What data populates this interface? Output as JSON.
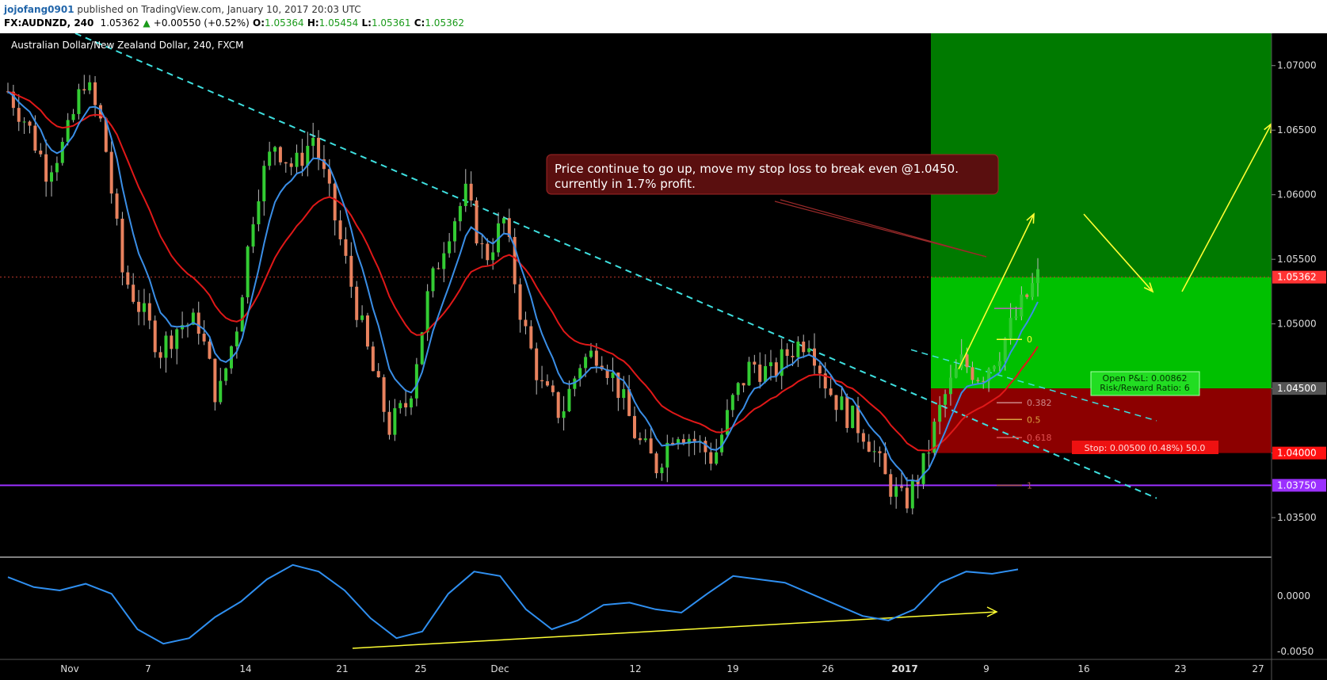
{
  "header": {
    "author": "jojofang0901",
    "published": "published on TradingView.com, January 10, 2017 20:03 UTC",
    "symbol": "FX:AUDNZD, 240",
    "last": "1.05362",
    "arrow": "▲",
    "change": "+0.00550 (+0.52%)",
    "o_label": "O:",
    "o_value": "1.05364",
    "h_label": "H:",
    "h_value": "1.05454",
    "l_label": "L:",
    "l_value": "1.05361",
    "c_label": "C:",
    "c_value": "1.05362"
  },
  "chart_data": {
    "type": "candlestick",
    "title": "Australian Dollar/New Zealand Dollar, 240, FXCM",
    "y_ticks": [
      "1.07000",
      "1.06500",
      "1.06000",
      "1.05500",
      "1.05000",
      "1.04500",
      "1.04000",
      "1.03500"
    ],
    "y_range": [
      1.032,
      1.0725
    ],
    "x_ticks": [
      "Nov",
      "7",
      "14",
      "21",
      "25",
      "Dec",
      "12",
      "19",
      "26",
      "2017",
      "9",
      "16",
      "23",
      "27"
    ],
    "price_tag": "1.05362",
    "support_tag": "1.03750",
    "entry_tag": "1.04500",
    "stop_tag": "1.04000",
    "support_level": 1.0375,
    "entry_level": 1.045,
    "stop_level": 1.04,
    "current_price": 1.05362,
    "target_level": 1.0725,
    "annotation": "Price continue to go up, move my stop loss to break even @1.0450. currently in 1.7% profit.",
    "annotation_lines": [
      "Price continue to go up, move my stop loss to break even @1.0450.",
      "currently in 1.7% profit."
    ],
    "position_box": [
      "Open P&L: 0.00862",
      "Risk/Reward Ratio: 6"
    ],
    "stop_box": "Stop: 0.00500 (0.48%) 50.0",
    "fib_levels": [
      {
        "label": "0",
        "value": 1.0488
      },
      {
        "label": "0.382",
        "value": 1.0439
      },
      {
        "label": "0.5",
        "value": 1.0426
      },
      {
        "label": "0.618",
        "value": 1.0412
      },
      {
        "label": "1",
        "value": 1.0375
      }
    ],
    "price_anchors": [
      {
        "x": 0,
        "y": 1.068
      },
      {
        "x": 1,
        "y": 1.0655
      },
      {
        "x": 2,
        "y": 1.062
      },
      {
        "x": 3,
        "y": 1.064
      },
      {
        "x": 4,
        "y": 1.069
      },
      {
        "x": 5,
        "y": 1.065
      },
      {
        "x": 6,
        "y": 1.054
      },
      {
        "x": 7,
        "y": 1.051
      },
      {
        "x": 8,
        "y": 1.048
      },
      {
        "x": 9,
        "y": 1.05
      },
      {
        "x": 10,
        "y": 1.05
      },
      {
        "x": 11,
        "y": 1.044
      },
      {
        "x": 12,
        "y": 1.05
      },
      {
        "x": 13,
        "y": 1.06
      },
      {
        "x": 14,
        "y": 1.064
      },
      {
        "x": 15,
        "y": 1.062
      },
      {
        "x": 16,
        "y": 1.0645
      },
      {
        "x": 17,
        "y": 1.059
      },
      {
        "x": 18,
        "y": 1.053
      },
      {
        "x": 19,
        "y": 1.047
      },
      {
        "x": 20,
        "y": 1.042
      },
      {
        "x": 21,
        "y": 1.044
      },
      {
        "x": 22,
        "y": 1.052
      },
      {
        "x": 23,
        "y": 1.057
      },
      {
        "x": 24,
        "y": 1.06
      },
      {
        "x": 25,
        "y": 1.055
      },
      {
        "x": 26,
        "y": 1.058
      },
      {
        "x": 27,
        "y": 1.05
      },
      {
        "x": 28,
        "y": 1.045
      },
      {
        "x": 29,
        "y": 1.043
      },
      {
        "x": 30,
        "y": 1.047
      },
      {
        "x": 31,
        "y": 1.048
      },
      {
        "x": 32,
        "y": 1.045
      },
      {
        "x": 33,
        "y": 1.041
      },
      {
        "x": 34,
        "y": 1.039
      },
      {
        "x": 35,
        "y": 1.042
      },
      {
        "x": 36,
        "y": 1.041
      },
      {
        "x": 37,
        "y": 1.0395
      },
      {
        "x": 38,
        "y": 1.044
      },
      {
        "x": 39,
        "y": 1.047
      },
      {
        "x": 40,
        "y": 1.046
      },
      {
        "x": 41,
        "y": 1.048
      },
      {
        "x": 42,
        "y": 1.049
      },
      {
        "x": 43,
        "y": 1.045
      },
      {
        "x": 44,
        "y": 1.043
      },
      {
        "x": 45,
        "y": 1.0415
      },
      {
        "x": 46,
        "y": 1.038
      },
      {
        "x": 47,
        "y": 1.036
      },
      {
        "x": 48,
        "y": 1.039
      },
      {
        "x": 49,
        "y": 1.044
      },
      {
        "x": 50,
        "y": 1.047
      },
      {
        "x": 51,
        "y": 1.046
      },
      {
        "x": 52,
        "y": 1.048
      },
      {
        "x": 53,
        "y": 1.051
      },
      {
        "x": 54,
        "y": 1.0536
      }
    ],
    "oscillator": {
      "zero_tick": "0.0000",
      "bottom_tick": "-0.0050",
      "range": [
        -0.005,
        0.003
      ],
      "values": [
        0.0017,
        0.0008,
        0.0005,
        0.0011,
        0.0002,
        -0.003,
        -0.0043,
        -0.0038,
        -0.0019,
        -0.0005,
        0.0015,
        0.0028,
        0.0022,
        0.0005,
        -0.002,
        -0.0038,
        -0.0032,
        0.0002,
        0.0022,
        0.0018,
        -0.0012,
        -0.003,
        -0.0022,
        -0.0008,
        -0.0006,
        -0.0012,
        -0.0015,
        0.0002,
        0.0018,
        0.0015,
        0.0012,
        0.0002,
        -0.0008,
        -0.0018,
        -0.0022,
        -0.0012,
        0.0012,
        0.0022,
        0.002,
        0.0024
      ]
    }
  }
}
